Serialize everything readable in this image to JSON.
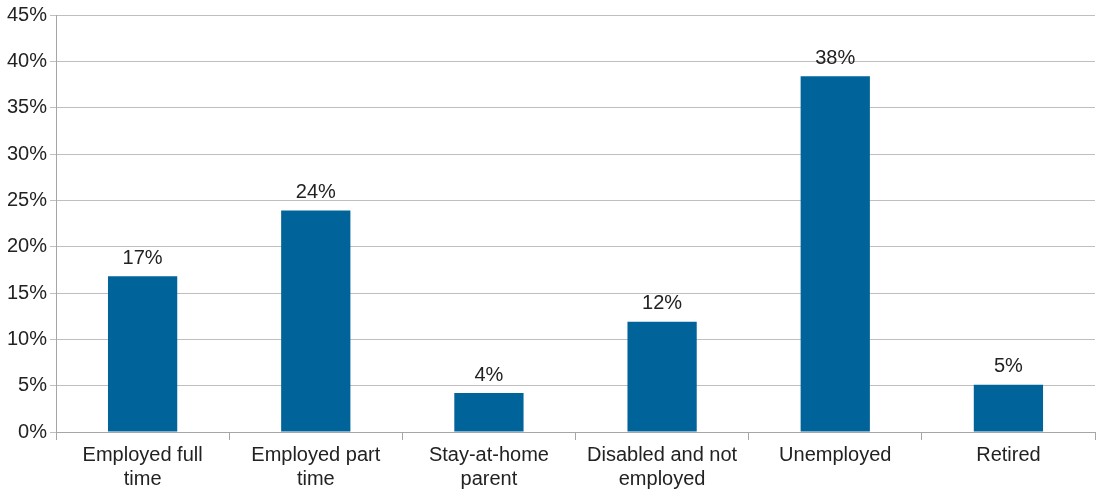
{
  "chart_data": {
    "type": "bar",
    "categories": [
      "Employed full time",
      "Employed part time",
      "Stay-at-home parent",
      "Disabled and not employed",
      "Unemployed",
      "Retired"
    ],
    "values": [
      16.8,
      23.9,
      4.2,
      11.9,
      38.4,
      5.1
    ],
    "value_labels": [
      "17%",
      "24%",
      "4%",
      "12%",
      "38%",
      "5%"
    ],
    "color": "#00649a",
    "ylim": [
      0,
      45
    ],
    "yticks": [
      {
        "value": 0,
        "label": "0%"
      },
      {
        "value": 5,
        "label": "5%"
      },
      {
        "value": 10,
        "label": "10%"
      },
      {
        "value": 15,
        "label": "15%"
      },
      {
        "value": 20,
        "label": "20%"
      },
      {
        "value": 25,
        "label": "25%"
      },
      {
        "value": 30,
        "label": "30%"
      },
      {
        "value": 35,
        "label": "35%"
      },
      {
        "value": 40,
        "label": "40%"
      },
      {
        "value": 45,
        "label": "45%"
      }
    ],
    "grid": "y"
  }
}
